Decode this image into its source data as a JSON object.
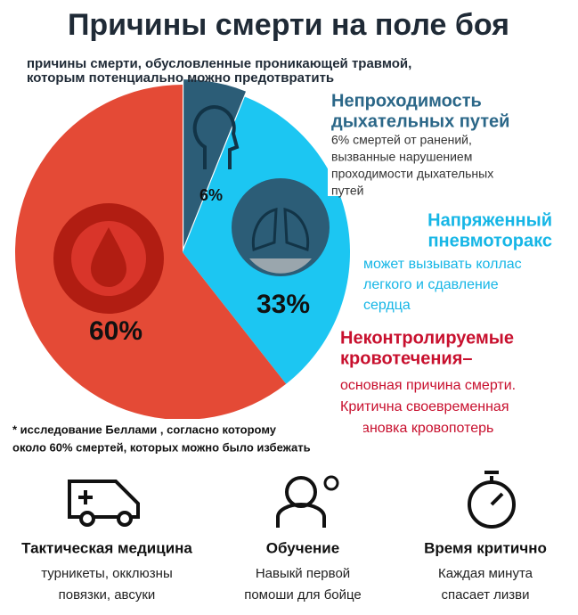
{
  "chart_data": {
    "type": "pie",
    "title": "Причины смерти на поле боя",
    "subtitle": [
      "причины смерти, обусловленные проникающей травмой,",
      "которым потенциально можно предотвратить"
    ],
    "values": [
      6,
      33,
      60
    ],
    "value_labels": [
      "6%",
      "33%",
      "60%"
    ],
    "colors": [
      "#2c5d77",
      "#1cc6f2",
      "#e44a36"
    ],
    "callouts": [
      {
        "heading": [
          "Непроходимость",
          "дыхательных путей"
        ],
        "text": [
          "6% смертей от ранений,",
          "вызванные нарушением",
          "проходимости дыхательных",
          "путей"
        ]
      },
      {
        "heading": [
          "Напряженный",
          "пневмоторакс"
        ],
        "text": [
          "может вызывать коллас",
          "легкого и сдавление",
          "сердца"
        ]
      },
      {
        "heading": [
          "Неконтролируемые",
          "кровотечения–"
        ],
        "text": [
          "основная причина смерти.",
          "Критична своевременная",
          "остановка кровопотерь"
        ]
      }
    ],
    "footnote": [
      "* исследование Беллами , согласно которому",
      "около 60% смертей, которых можно было избежать"
    ]
  },
  "features": [
    {
      "title": "Тактическая медицина",
      "text": [
        "турникеты, окклюзны",
        "повязки, авсуки"
      ]
    },
    {
      "title": "Обучение",
      "text": [
        "Навыкй первой",
        "помоши для бойце"
      ]
    },
    {
      "title": "Время критично",
      "text": [
        "Каждая минута",
        "спасает лизви"
      ]
    }
  ]
}
